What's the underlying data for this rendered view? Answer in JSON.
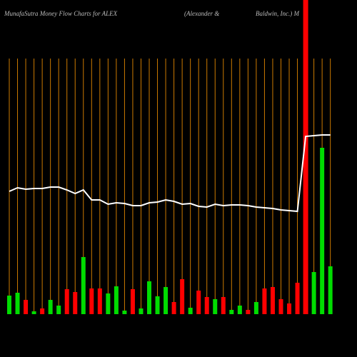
{
  "chart_data": {
    "type": "bar",
    "title": [
      "MunafaSutra  Money Flow  Charts for ALEX",
      "(Alexander &",
      "Baldwin, Inc.) M"
    ],
    "categories": [
      null,
      null,
      null,
      null,
      null,
      null,
      null,
      null,
      null,
      null,
      null,
      null,
      null,
      null,
      null,
      null,
      null,
      null,
      null,
      null,
      null,
      null,
      null,
      null,
      null,
      null,
      null,
      null,
      null,
      null,
      null,
      null,
      null,
      null,
      null,
      null,
      null,
      null,
      null,
      null
    ],
    "series": [
      {
        "type": "bar",
        "values": [
          26,
          30,
          20,
          4,
          8,
          20,
          12,
          35,
          31,
          80,
          36,
          36,
          29,
          39,
          5,
          35,
          8,
          46,
          25,
          38,
          17,
          49,
          9,
          33,
          24,
          21,
          24,
          6,
          12,
          6,
          17,
          36,
          38,
          21,
          15,
          44,
          440,
          59,
          233,
          67
        ],
        "colors": [
          "#00dd00",
          "#00dd00",
          "#ff0000",
          "#00dd00",
          "#ff0000",
          "#00dd00",
          "#00dd00",
          "#ff0000",
          "#ff0000",
          "#00dd00",
          "#ff0000",
          "#ff0000",
          "#00dd00",
          "#00dd00",
          "#00dd00",
          "#ff0000",
          "#00dd00",
          "#00dd00",
          "#00dd00",
          "#00dd00",
          "#ff0000",
          "#ff0000",
          "#00dd00",
          "#ff0000",
          "#ff0000",
          "#00dd00",
          "#ff0000",
          "#00dd00",
          "#00dd00",
          "#ff0000",
          "#00dd00",
          "#ff0000",
          "#ff0000",
          "#ff0000",
          "#ff0000",
          "#ff0000",
          "#ff0000",
          "#00dd00",
          "#00dd00",
          "#00dd00"
        ]
      },
      {
        "type": "line",
        "color": "#ffffff",
        "values": [
          172,
          177,
          175,
          176,
          176,
          178,
          178,
          174,
          169,
          174,
          160,
          160,
          154,
          156,
          155,
          152,
          152,
          156,
          157,
          160,
          158,
          154,
          155,
          151,
          150,
          154,
          152,
          153,
          153,
          152,
          150,
          149,
          148,
          146,
          145,
          144,
          249,
          250,
          251,
          251
        ]
      }
    ],
    "gridline_color": "#cc7a00"
  }
}
